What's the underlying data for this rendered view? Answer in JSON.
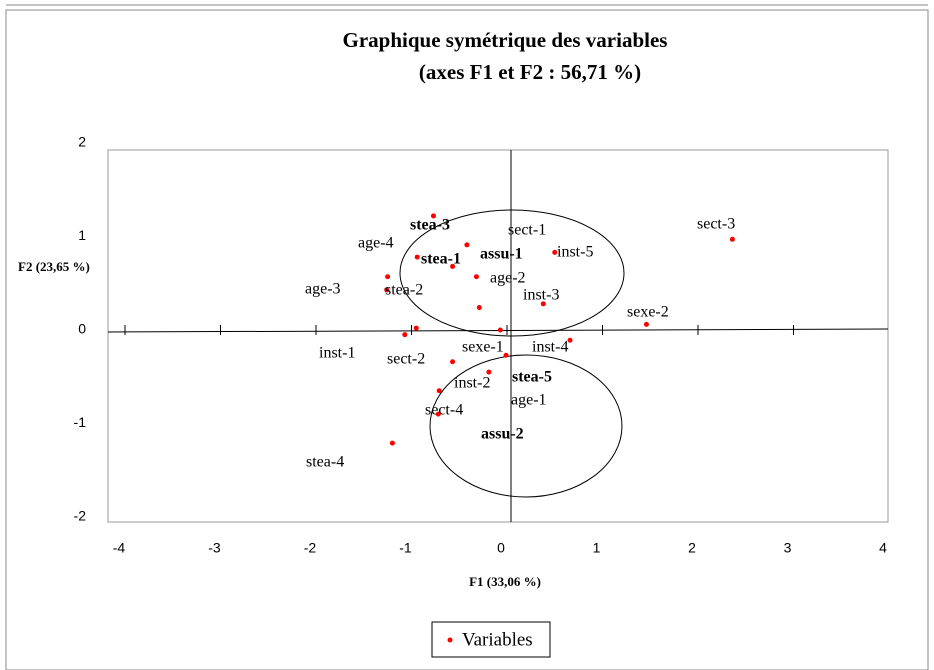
{
  "chart_data": {
    "type": "scatter",
    "title": "Graphique symétrique des variables",
    "subtitle": "(axes F1 et F2 : 56,71 %)",
    "x_label": "F1 (33,06 %)",
    "y_label": "F2 (23,65 %)",
    "xlim": [
      -4,
      4
    ],
    "ylim": [
      -2,
      2
    ],
    "xticks": [
      -4,
      -3,
      -2,
      -1,
      0,
      1,
      2,
      3,
      4
    ],
    "yticks": [
      -2,
      -1,
      0,
      1,
      2
    ],
    "legend": "bottom",
    "point_labels": [
      "stea-3",
      "age-4",
      "stea-1",
      "assu-1",
      "inst-5",
      "age-2",
      "age-3",
      "stea-2",
      "inst-3",
      "sect-1",
      "sect-3",
      "sexe-2",
      "inst-1",
      "sect-2",
      "sexe-1",
      "inst-4",
      "stea-5",
      "inst-2",
      "age-1",
      "sect-4",
      "assu-2",
      "stea-4"
    ],
    "series": [
      {
        "name": "Variables",
        "color": "#ff0000",
        "x": [
          -0.77,
          -0.94,
          -0.57,
          -0.42,
          0.5,
          -0.32,
          -1.25,
          -1.26,
          0.38,
          -0.29,
          2.36,
          1.46,
          -0.95,
          -1.07,
          -0.07,
          0.66,
          -0.01,
          -0.19,
          -0.57,
          -0.71,
          -0.72,
          -1.2
        ],
        "values": [
          1.22,
          0.78,
          0.68,
          0.91,
          0.83,
          0.57,
          0.57,
          0.43,
          0.28,
          0.24,
          0.97,
          0.06,
          0.02,
          -0.05,
          0.0,
          -0.11,
          -0.27,
          -0.45,
          -0.34,
          -0.65,
          -0.9,
          -1.21
        ]
      }
    ]
  }
}
